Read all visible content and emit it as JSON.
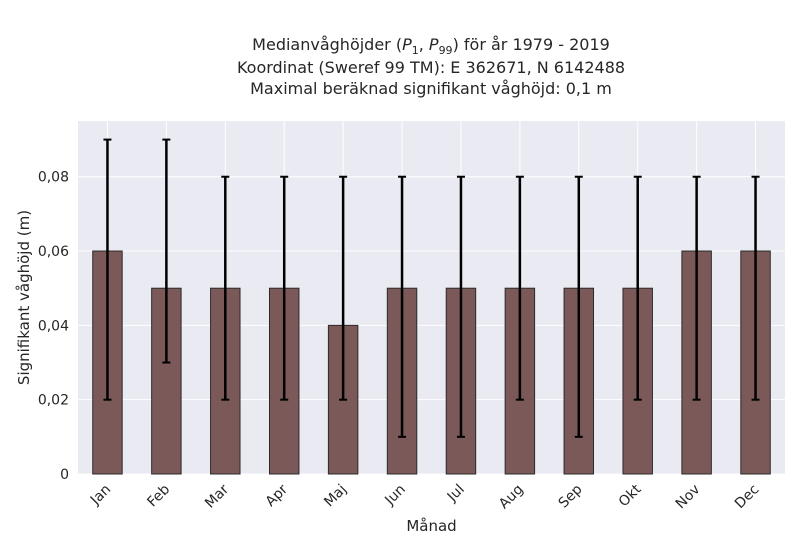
{
  "chart_data": {
    "type": "bar",
    "title_lines": [
      {
        "pre": "Medianvåghöjder (",
        "p1": "P",
        "s1": "1",
        "sep": ", ",
        "p2": "P",
        "s2": "99",
        "post": ") för år 1979 - 2019"
      },
      "Koordinat (Sweref 99 TM): E 362671, N 6142488",
      "Maximal beräknad signifikant våghöjd: 0,1 m"
    ],
    "xlabel": "Månad",
    "ylabel": "Signifikant våghöjd (m)",
    "categories": [
      "Jan",
      "Feb",
      "Mar",
      "Apr",
      "Maj",
      "Jun",
      "Jul",
      "Aug",
      "Sep",
      "Okt",
      "Nov",
      "Dec"
    ],
    "values": [
      0.06,
      0.05,
      0.05,
      0.05,
      0.04,
      0.05,
      0.05,
      0.05,
      0.05,
      0.05,
      0.06,
      0.06
    ],
    "err_low": [
      0.02,
      0.03,
      0.02,
      0.02,
      0.02,
      0.01,
      0.01,
      0.02,
      0.01,
      0.02,
      0.02,
      0.02
    ],
    "err_high": [
      0.09,
      0.09,
      0.08,
      0.08,
      0.08,
      0.08,
      0.08,
      0.08,
      0.08,
      0.08,
      0.08,
      0.08
    ],
    "ylim": [
      0,
      0.095
    ],
    "yticks": [
      0,
      0.02,
      0.04,
      0.06,
      0.08
    ],
    "ytick_labels": [
      "0",
      "0,02",
      "0,04",
      "0,06",
      "0,08"
    ],
    "grid": true,
    "colors": {
      "bar": "#7b5959",
      "bar_edge": "#2b2b2b",
      "error": "#000000",
      "plot_bg": "#eaeaf2",
      "grid": "#ffffff"
    }
  }
}
